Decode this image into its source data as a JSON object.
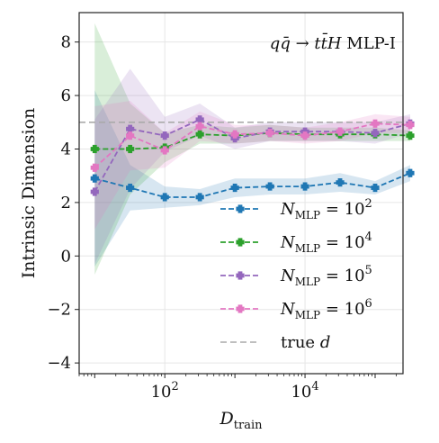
{
  "chart_data": {
    "type": "line",
    "annotation": {
      "parts": [
        {
          "t": "q",
          "style": "italic"
        },
        {
          "t": "q̄",
          "style": "italic"
        },
        {
          "t": " → ",
          "style": "normal"
        },
        {
          "t": "t",
          "style": "italic"
        },
        {
          "t": "t̄",
          "style": "italic"
        },
        {
          "t": "H",
          "style": "italic"
        },
        {
          "t": " MLP-I",
          "style": "normal"
        }
      ]
    },
    "xlabel": {
      "main": "D",
      "sub": "train"
    },
    "ylabel": "Intrinsic Dimension",
    "xscale": "log",
    "xlim": [
      6,
      250000
    ],
    "ylim": [
      -4.4,
      9.1
    ],
    "yticks": [
      -4,
      -2,
      0,
      2,
      4,
      6,
      8
    ],
    "ytick_labels": [
      "−4",
      "−2",
      "0",
      "2",
      "4",
      "6",
      "8"
    ],
    "xticks": [
      {
        "value": 100,
        "base": "10",
        "exp": "2"
      },
      {
        "value": 10000,
        "base": "10",
        "exp": "4"
      }
    ],
    "grid": true,
    "legend_position": "lower-right",
    "x": [
      10,
      32,
      100,
      316,
      1000,
      3162,
      10000,
      31623,
      100000,
      316228
    ],
    "series": [
      {
        "name": {
          "pre": "N",
          "sub": "MLP",
          "mid": " = 10",
          "sup": "2"
        },
        "color": "#1f77b4",
        "values": [
          2.9,
          2.55,
          2.2,
          2.2,
          2.55,
          2.6,
          2.6,
          2.75,
          2.55,
          3.1
        ],
        "lower": [
          -0.4,
          1.7,
          1.8,
          1.9,
          2.2,
          2.3,
          2.3,
          2.4,
          2.3,
          2.8
        ],
        "upper": [
          6.2,
          3.4,
          2.6,
          2.5,
          2.9,
          2.9,
          2.9,
          3.1,
          2.8,
          3.4
        ]
      },
      {
        "name": {
          "pre": "N",
          "sub": "MLP",
          "mid": " = 10",
          "sup": "4"
        },
        "color": "#2ca02c",
        "values": [
          4.0,
          4.0,
          4.05,
          4.55,
          4.5,
          4.6,
          4.55,
          4.55,
          4.55,
          4.5
        ],
        "lower": [
          -0.7,
          2.3,
          3.5,
          4.2,
          4.2,
          4.3,
          4.3,
          4.3,
          4.3,
          4.3
        ],
        "upper": [
          8.7,
          5.7,
          4.6,
          4.9,
          4.8,
          4.9,
          4.8,
          4.8,
          4.8,
          4.7
        ]
      },
      {
        "name": {
          "pre": "N",
          "sub": "MLP",
          "mid": " = 10",
          "sup": "5"
        },
        "color": "#9467bd",
        "values": [
          2.4,
          4.75,
          4.5,
          5.1,
          4.4,
          4.65,
          4.65,
          4.65,
          4.6,
          4.95
        ],
        "lower": [
          -0.3,
          2.5,
          3.9,
          4.5,
          4.0,
          4.3,
          4.3,
          4.3,
          4.2,
          4.6
        ],
        "upper": [
          5.1,
          7.0,
          5.2,
          5.7,
          4.8,
          5.0,
          5.0,
          5.0,
          5.0,
          5.3
        ]
      },
      {
        "name": {
          "pre": "N",
          "sub": "MLP",
          "mid": " = 10",
          "sup": "6"
        },
        "color": "#e377c2",
        "values": [
          3.3,
          4.5,
          3.95,
          4.85,
          4.55,
          4.6,
          4.5,
          4.65,
          4.95,
          4.9
        ],
        "lower": [
          1.0,
          3.2,
          3.3,
          4.3,
          4.2,
          4.3,
          4.2,
          4.3,
          4.6,
          4.6
        ],
        "upper": [
          5.6,
          5.8,
          4.6,
          5.4,
          4.9,
          4.9,
          4.8,
          5.0,
          5.3,
          5.2
        ]
      }
    ],
    "reference_line": {
      "label_pre": "true ",
      "label_var": "d",
      "y": 5.0,
      "color": "#aaaaaa"
    }
  }
}
